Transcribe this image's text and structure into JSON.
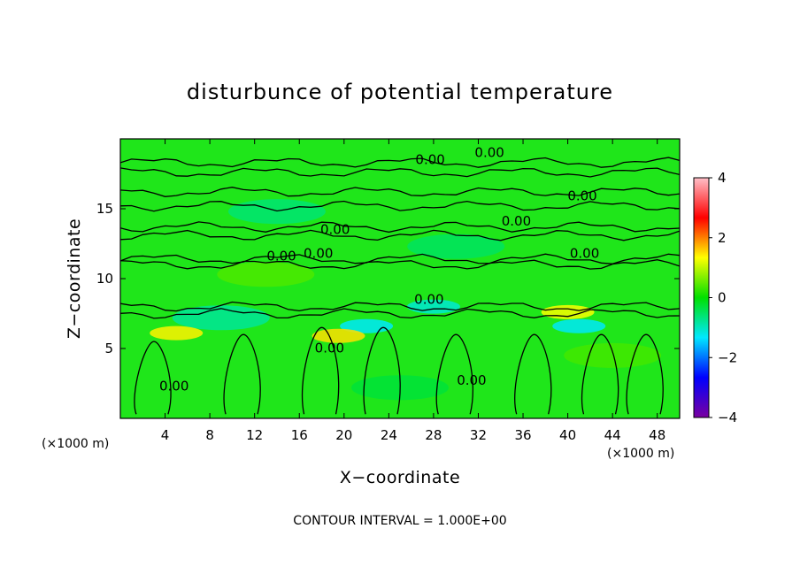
{
  "chart_data": {
    "type": "heatmap",
    "title": "disturbunce of potential temperature",
    "xlabel": "X−coordinate",
    "ylabel": "Z−coordinate",
    "x_unit": "(×1000 m)",
    "y_unit": "(×1000 m)",
    "xlim": [
      0,
      50
    ],
    "ylim": [
      0,
      20
    ],
    "x_ticks": [
      4,
      8,
      12,
      16,
      20,
      24,
      28,
      32,
      36,
      40,
      44,
      48
    ],
    "y_ticks": [
      5,
      10,
      15
    ],
    "colorbar": {
      "range": [
        -4,
        4
      ],
      "ticks": [
        4,
        2,
        0,
        -2,
        -4
      ],
      "tick_labels": [
        "4",
        "2",
        "0",
        "−2",
        "−4"
      ],
      "colors": [
        "#ffbfc8",
        "#ff0000",
        "#ffff00",
        "#00e000",
        "#00e8ff",
        "#0000ff",
        "#7a00a0"
      ]
    },
    "contour_interval_text": "CONTOUR INTERVAL = 1.000E+00",
    "contour_labels": [
      {
        "text": "0.00",
        "x": 27.7,
        "z": 18.2
      },
      {
        "text": "0.00",
        "x": 33.0,
        "z": 18.7
      },
      {
        "text": "0.00",
        "x": 41.3,
        "z": 15.6
      },
      {
        "text": "0.00",
        "x": 35.4,
        "z": 13.8
      },
      {
        "text": "0.00",
        "x": 19.2,
        "z": 13.2
      },
      {
        "text": "0.00",
        "x": 14.4,
        "z": 11.3
      },
      {
        "text": "0.00",
        "x": 17.7,
        "z": 11.5
      },
      {
        "text": "0.00",
        "x": 41.5,
        "z": 11.5
      },
      {
        "text": "0.00",
        "x": 27.6,
        "z": 8.2
      },
      {
        "text": "0.00",
        "x": 4.8,
        "z": 2.0
      },
      {
        "text": "0.00",
        "x": 18.7,
        "z": 4.7
      },
      {
        "text": "0.00",
        "x": 31.4,
        "z": 2.4
      }
    ],
    "field_features": [
      {
        "x": 28,
        "z": 8.0,
        "value": -1.1
      },
      {
        "x": 22,
        "z": 6.6,
        "value": -1.3
      },
      {
        "x": 41,
        "z": 6.6,
        "value": -1.3
      },
      {
        "x": 30,
        "z": 12.3,
        "value": -0.5
      },
      {
        "x": 14,
        "z": 14.8,
        "value": -0.6
      },
      {
        "x": 9,
        "z": 7.2,
        "value": -0.8
      },
      {
        "x": 19.5,
        "z": 5.9,
        "value": 1.5
      },
      {
        "x": 40,
        "z": 7.6,
        "value": 1.3
      },
      {
        "x": 5,
        "z": 6.1,
        "value": 1.4
      },
      {
        "x": 25,
        "z": 2.2,
        "value": -0.3
      },
      {
        "x": 44,
        "z": 4.5,
        "value": 0.35
      },
      {
        "x": 13,
        "z": 10.3,
        "value": 0.4
      }
    ]
  }
}
